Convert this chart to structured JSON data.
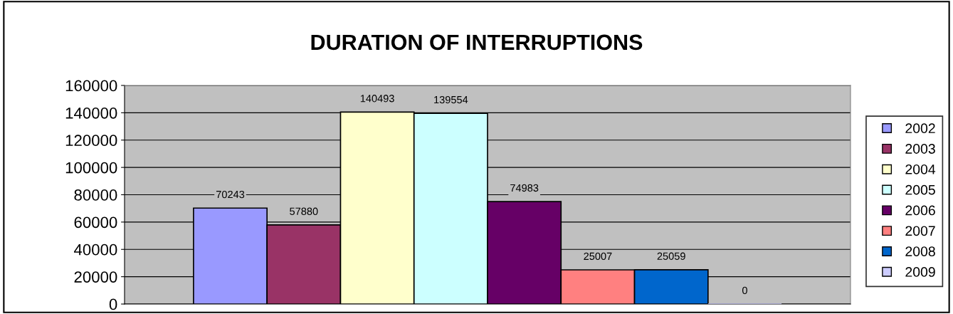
{
  "chart_data": {
    "type": "bar",
    "title": "DURATION OF INTERRUPTIONS",
    "categories": [
      null
    ],
    "series": [
      {
        "name": "2002",
        "color": "#9999ff",
        "values": [
          70243
        ]
      },
      {
        "name": "2003",
        "color": "#993366",
        "values": [
          57880
        ]
      },
      {
        "name": "2004",
        "color": "#ffffcc",
        "values": [
          140493
        ]
      },
      {
        "name": "2005",
        "color": "#ccffff",
        "values": [
          139554
        ]
      },
      {
        "name": "2006",
        "color": "#660066",
        "values": [
          74983
        ]
      },
      {
        "name": "2007",
        "color": "#ff8080",
        "values": [
          25007
        ]
      },
      {
        "name": "2008",
        "color": "#0066cc",
        "values": [
          25059
        ]
      },
      {
        "name": "2009",
        "color": "#ccccff",
        "values": [
          0
        ]
      }
    ],
    "ylim": [
      0,
      160000
    ],
    "yticks": [
      0,
      20000,
      40000,
      60000,
      80000,
      100000,
      120000,
      140000,
      160000
    ],
    "grid": "y",
    "legend": "right",
    "data_labels": true
  }
}
